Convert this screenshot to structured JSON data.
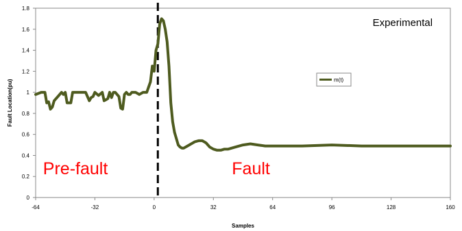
{
  "chart_data": {
    "type": "line",
    "xlabel": "Samples",
    "ylabel": "Fault Location(pu)",
    "xlim": [
      -64,
      160
    ],
    "ylim": [
      0,
      1.8
    ],
    "xticks": [
      -64,
      -32,
      0,
      32,
      64,
      96,
      128,
      160
    ],
    "yticks": [
      0,
      0.2,
      0.4,
      0.6,
      0.8,
      1,
      1.2,
      1.4,
      1.6,
      1.8
    ],
    "grid": false,
    "legend_position": "center-right",
    "fault_marker_x": 2,
    "series": [
      {
        "name": "m(t)",
        "color": "#4e5b1f",
        "x": [
          -64,
          -61,
          -59,
          -58,
          -57,
          -56,
          -55,
          -54,
          -52,
          -50,
          -49,
          -48,
          -47,
          -46,
          -45,
          -44,
          -43,
          -42,
          -40,
          -37,
          -35,
          -34,
          -33,
          -32,
          -30,
          -28,
          -27,
          -26,
          -25,
          -24,
          -23,
          -22,
          -21,
          -19,
          -18,
          -17,
          -16,
          -15,
          -14,
          -13,
          -12,
          -11,
          -10,
          -8,
          -6,
          -4,
          -2,
          -1,
          0,
          1,
          2,
          3,
          4,
          5,
          6,
          7,
          8,
          9,
          10,
          11,
          12,
          13,
          14,
          15,
          16,
          18,
          20,
          22,
          24,
          26,
          28,
          30,
          32,
          34,
          36,
          38,
          40,
          44,
          48,
          52,
          56,
          60,
          64,
          72,
          80,
          96,
          112,
          128,
          144,
          160
        ],
        "values": [
          0.98,
          1.0,
          1.0,
          0.9,
          0.91,
          0.84,
          0.86,
          0.92,
          0.96,
          1.0,
          0.98,
          1.0,
          0.9,
          0.9,
          0.9,
          1.0,
          1.0,
          1.0,
          1.0,
          1.0,
          0.92,
          0.95,
          0.96,
          1.0,
          0.97,
          1.0,
          0.92,
          0.93,
          0.94,
          1.0,
          0.95,
          1.0,
          1.0,
          0.96,
          0.85,
          0.84,
          0.98,
          1.0,
          0.98,
          0.98,
          1.0,
          1.0,
          1.0,
          0.98,
          1.0,
          1.0,
          1.1,
          1.25,
          1.2,
          1.4,
          1.46,
          1.65,
          1.7,
          1.68,
          1.6,
          1.48,
          1.25,
          0.9,
          0.72,
          0.62,
          0.56,
          0.5,
          0.48,
          0.47,
          0.47,
          0.49,
          0.51,
          0.53,
          0.54,
          0.54,
          0.52,
          0.48,
          0.46,
          0.45,
          0.45,
          0.46,
          0.46,
          0.48,
          0.5,
          0.51,
          0.5,
          0.49,
          0.49,
          0.49,
          0.49,
          0.5,
          0.49,
          0.49,
          0.49,
          0.49
        ]
      }
    ],
    "annotations": [
      {
        "text": "Pre-fault",
        "color": "#ff0000",
        "at_x": -60,
        "at_y": 0.22
      },
      {
        "text": "Fault",
        "color": "#ff0000",
        "at_x": 42,
        "at_y": 0.22
      },
      {
        "text": "Experimental",
        "color": "#000000",
        "at_x": 118,
        "at_y": 1.63
      }
    ]
  }
}
